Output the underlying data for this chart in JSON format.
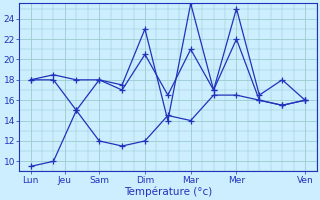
{
  "title": "",
  "xlabel": "Température (°c)",
  "ylabel": "",
  "background_color": "#cceeff",
  "grid_color": "#99cccc",
  "line_color": "#2233bb",
  "xlim": [
    -0.5,
    12.5
  ],
  "ylim": [
    9,
    25.5
  ],
  "yticks": [
    10,
    12,
    14,
    16,
    18,
    20,
    22,
    24
  ],
  "day_positions": [
    0,
    1.5,
    3,
    5,
    7,
    9,
    12
  ],
  "day_labels": [
    "Lun",
    "Jeu",
    "Sam",
    "Dim",
    "Mar",
    "Mer",
    "Ven"
  ],
  "series": [
    [
      9.5,
      10.0,
      15.0,
      12.0,
      11.5,
      12.0,
      14.5,
      14.0,
      16.5,
      16.5,
      16.0,
      15.5,
      16.0
    ],
    [
      18.0,
      18.0,
      15.0,
      18.0,
      17.5,
      23.0,
      14.0,
      25.5,
      17.0,
      25.0,
      16.5,
      18.0,
      16.0
    ],
    [
      18.0,
      18.5,
      18.0,
      18.0,
      17.0,
      20.5,
      16.5,
      21.0,
      17.0,
      22.0,
      16.0,
      15.5,
      16.0
    ]
  ]
}
